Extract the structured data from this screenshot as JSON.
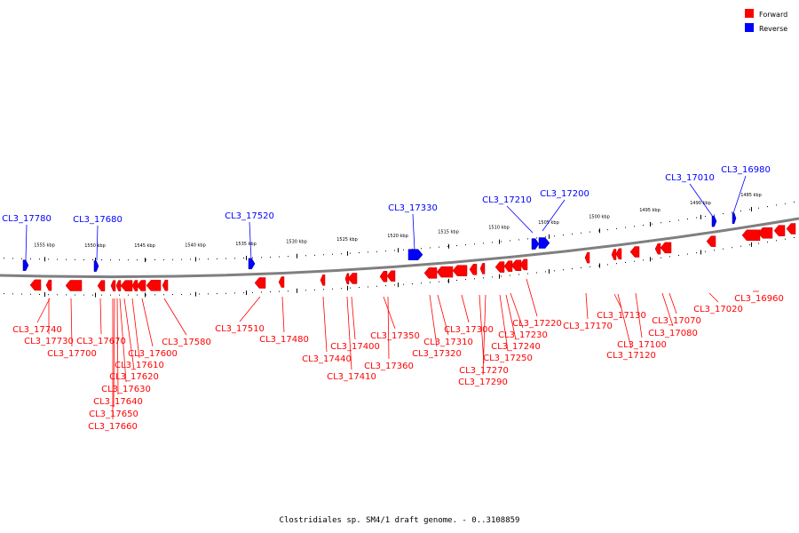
{
  "title": "Clostridiales sp. SM4/1 draft genome. - 0..3108859",
  "legend": [
    {
      "label": "Forward",
      "color": "#ff0000"
    },
    {
      "label": "Reverse",
      "color": "#0000ff"
    }
  ],
  "colors": {
    "forward": "#ff0000",
    "reverse": "#0000ff",
    "backbone": "#7f7f7f"
  },
  "scale_labels": [
    "1555 kbp",
    "1550 kbp",
    "1545 kbp",
    "1540 kbp",
    "1535 kbp",
    "1530 kbp",
    "1525 kbp",
    "1520 kbp",
    "1515 kbp",
    "1510 kbp",
    "1505 kbp",
    "1500 kbp",
    "1495 kbp",
    "1490 kbp",
    "1485 kbp"
  ],
  "reverse_genes": [
    "CL3_17780",
    "CL3_17680",
    "CL3_17520",
    "CL3_17330",
    "CL3_17210",
    "CL3_17200",
    "CL3_17010",
    "CL3_16980"
  ],
  "forward_genes": [
    "CL3_17740",
    "CL3_17730",
    "CL3_17700",
    "CL3_17670",
    "CL3_17660",
    "CL3_17650",
    "CL3_17640",
    "CL3_17630",
    "CL3_17620",
    "CL3_17610",
    "CL3_17600",
    "CL3_17580",
    "CL3_17510",
    "CL3_17480",
    "CL3_17440",
    "CL3_17410",
    "CL3_17400",
    "CL3_17360",
    "CL3_17350",
    "CL3_17320",
    "CL3_17310",
    "CL3_17300",
    "CL3_17290",
    "CL3_17270",
    "CL3_17250",
    "CL3_17240",
    "CL3_17230",
    "CL3_17220",
    "CL3_17170",
    "CL3_17130",
    "CL3_17120",
    "CL3_17100",
    "CL3_17080",
    "CL3_17070",
    "CL3_17020",
    "CL3_16960"
  ]
}
